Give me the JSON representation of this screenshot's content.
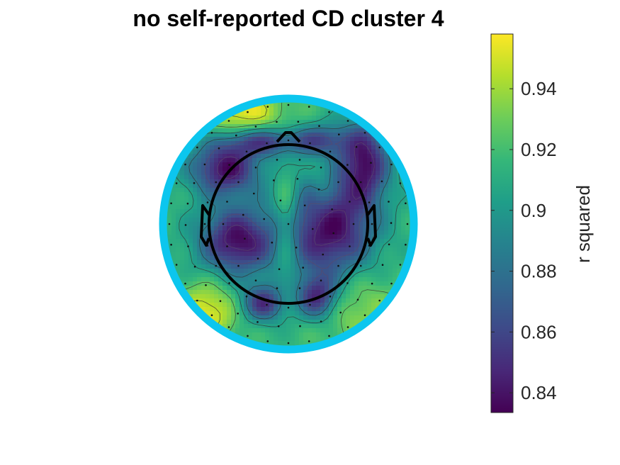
{
  "chart_data": {
    "type": "heatmap",
    "subtype": "eeg-topographic-map",
    "title": "no self-reported CD cluster 4",
    "colormap": "viridis",
    "colorbar": {
      "label": "r squared",
      "range": [
        0.8335,
        0.958
      ],
      "ticks": [
        0.84,
        0.86,
        0.88,
        0.9,
        0.92,
        0.94
      ],
      "tick_labels": [
        "0.84",
        "0.86",
        "0.88",
        "0.9",
        "0.92",
        "0.94"
      ],
      "placement": "right"
    },
    "contour_lines": true,
    "electrode_markers": true,
    "head_outline": true,
    "border_color": "#0cc6ee",
    "value_field": {
      "baseline": 0.915,
      "features": [
        {
          "region": "left-frontal",
          "value": 0.838
        },
        {
          "region": "right-frontal",
          "value": 0.842
        },
        {
          "region": "left-central",
          "value": 0.836
        },
        {
          "region": "right-central",
          "value": 0.835
        },
        {
          "region": "fronto-polar-left",
          "value": 0.86
        },
        {
          "region": "fronto-polar-mid",
          "value": 0.87
        },
        {
          "region": "occipital-left",
          "value": 0.852
        },
        {
          "region": "occipital-right",
          "value": 0.85
        },
        {
          "region": "top-left-edge",
          "value": 0.955
        },
        {
          "region": "bottom-left-edge",
          "value": 0.955
        },
        {
          "region": "midline-central",
          "value": 0.945
        },
        {
          "region": "lower-right",
          "value": 0.94
        },
        {
          "region": "upper-midline",
          "value": 0.93
        }
      ]
    }
  }
}
